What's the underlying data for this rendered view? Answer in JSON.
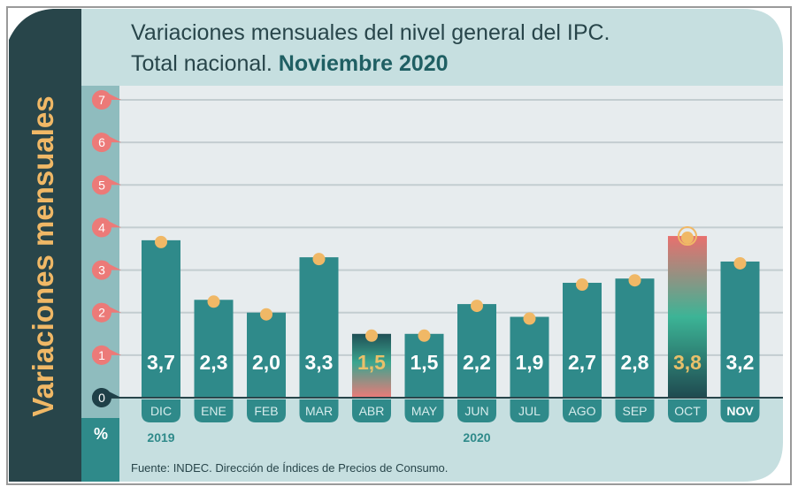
{
  "title_line1": "Variaciones mensuales del nivel general del IPC.",
  "title_line2_plain": "Total nacional.",
  "title_line2_bold": "Noviembre 2020",
  "side_label": "Variaciones mensuales",
  "unit": "%",
  "source": "Fuente: INDEC. Dirección de Índices de Precios de Consumo.",
  "colors": {
    "bar": "#2f8a8a",
    "dark": "#28454a",
    "accent": "#f0b866",
    "marker": "#ec7a78",
    "header": "#c6dfe0",
    "plot_bg": "#e7ecee",
    "highlight_text": "#e8c06a"
  },
  "chart_data": {
    "type": "bar",
    "categories": [
      "DIC",
      "ENE",
      "FEB",
      "MAR",
      "ABR",
      "MAY",
      "JUN",
      "JUL",
      "AGO",
      "SEP",
      "OCT",
      "NOV"
    ],
    "values": [
      3.7,
      2.3,
      2.0,
      3.3,
      1.5,
      1.5,
      2.2,
      1.9,
      2.7,
      2.8,
      3.8,
      3.2
    ],
    "value_labels": [
      "3,7",
      "2,3",
      "2,0",
      "3,3",
      "1,5",
      "1,5",
      "2,2",
      "1,9",
      "2,7",
      "2,8",
      "3,8",
      "3,2"
    ],
    "highlighted": [
      "ABR",
      "OCT"
    ],
    "year_labels": [
      {
        "label": "2019",
        "category": "DIC"
      },
      {
        "label": "2020",
        "category": "JUN"
      }
    ],
    "yticks": [
      0,
      1,
      2,
      3,
      4,
      5,
      6,
      7
    ],
    "ylim": [
      0,
      7
    ],
    "grid": true,
    "ylabel": "Variaciones mensuales"
  }
}
